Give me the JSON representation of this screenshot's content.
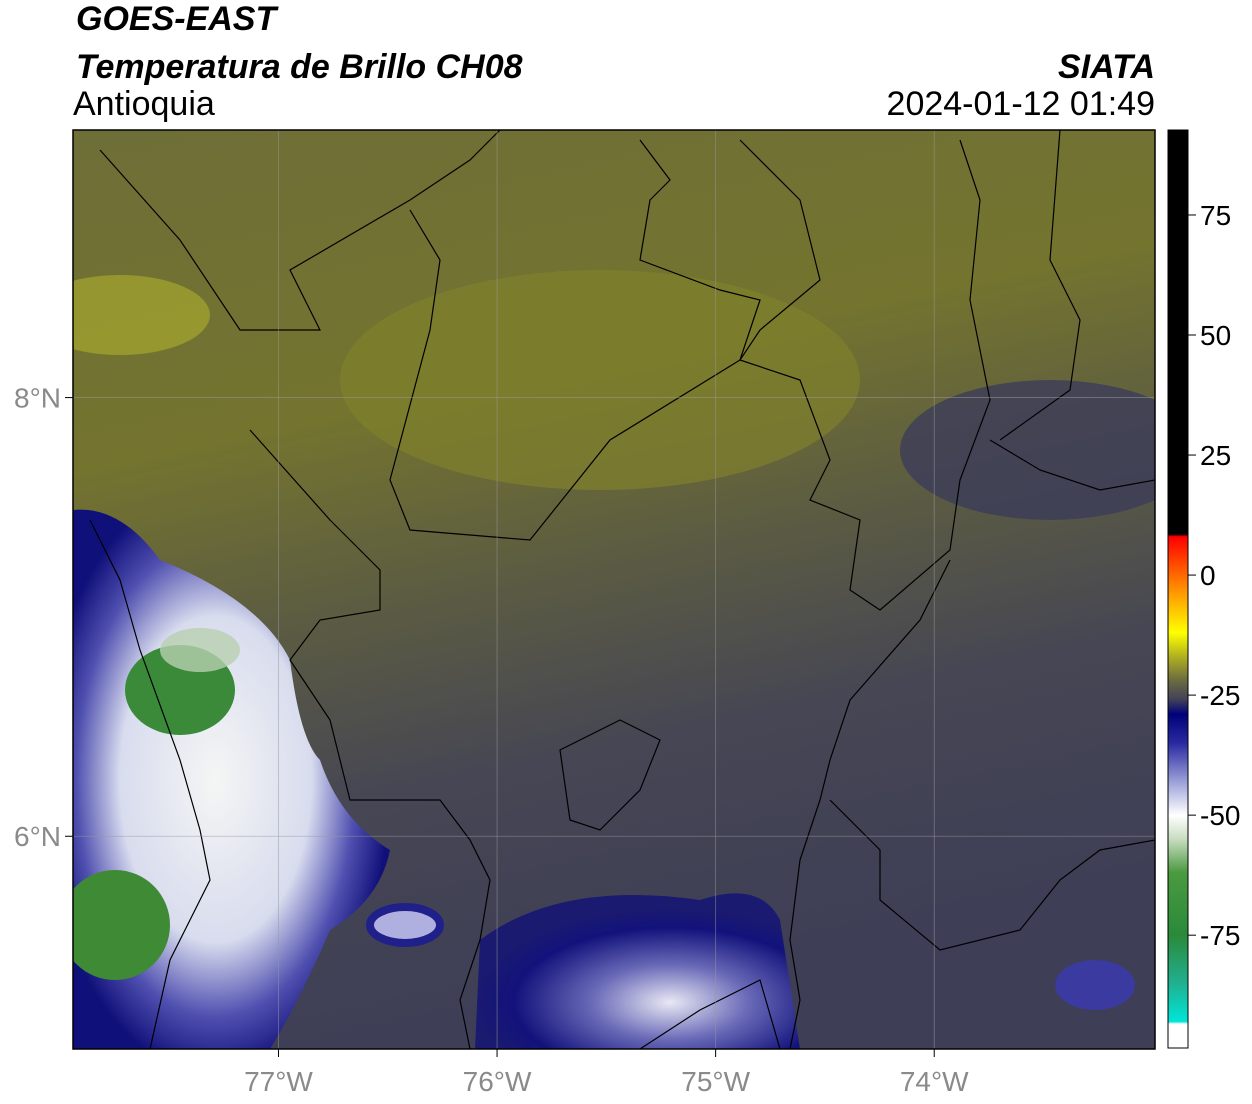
{
  "header": {
    "title": "GOES-EAST",
    "subtitle": "Temperatura de Brillo CH08",
    "region": "Antioquia",
    "source": "SIATA",
    "datetime": "2024-01-12 01:49"
  },
  "map": {
    "type": "map",
    "xlim": [
      -77.94,
      -72.99
    ],
    "ylim": [
      5.03,
      9.22
    ],
    "xticks": [
      {
        "value": -77,
        "label": "77°W"
      },
      {
        "value": -76,
        "label": "76°W"
      },
      {
        "value": -75,
        "label": "75°W"
      },
      {
        "value": -74,
        "label": "74°W"
      }
    ],
    "yticks": [
      {
        "value": 8,
        "label": "8°N"
      },
      {
        "value": 6,
        "label": "6°N"
      }
    ],
    "grid": true
  },
  "colorbar": {
    "lim": [
      -98.5,
      92.7
    ],
    "ticks": [
      75,
      50,
      25,
      0,
      -25,
      -50,
      -75
    ],
    "colors": [
      [
        -98.5,
        "#ffffff"
      ],
      [
        -93.5,
        "#ffffff"
      ],
      [
        -93,
        "#00e5d8"
      ],
      [
        -85,
        "#20b090"
      ],
      [
        -75,
        "#2a8a3a"
      ],
      [
        -62,
        "#4a9a40"
      ],
      [
        -55,
        "#c8dcc0"
      ],
      [
        -50,
        "#ffffff"
      ],
      [
        -43,
        "#9aa0d8"
      ],
      [
        -35,
        "#2a2aa0"
      ],
      [
        -29,
        "#00007a"
      ],
      [
        -26,
        "#40405a"
      ],
      [
        -22,
        "#6a6a40"
      ],
      [
        -17,
        "#b0b020"
      ],
      [
        -12,
        "#ffff00"
      ],
      [
        -3,
        "#ff9000"
      ],
      [
        8,
        "#ff0000"
      ],
      [
        8.5,
        "#000000"
      ],
      [
        92.7,
        "#000000"
      ]
    ]
  }
}
